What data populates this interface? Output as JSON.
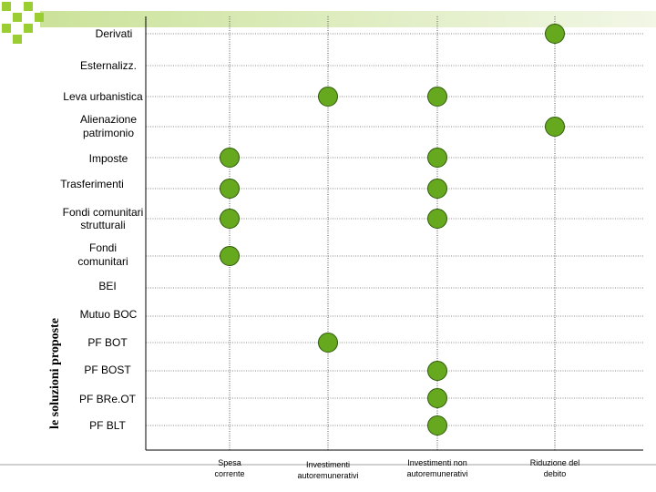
{
  "axis_title": "le soluzioni proposte",
  "colors": {
    "dot_fill": "#66a81e",
    "dot_stroke": "#2f5a0a",
    "header_bar": "#cbe29a",
    "header_squares": "#9acd32"
  },
  "columns": [
    {
      "id": "spesa",
      "lines": [
        "Spesa",
        "corrente"
      ]
    },
    {
      "id": "invest",
      "lines": [
        "Investimenti",
        "autoremunerativi"
      ]
    },
    {
      "id": "nonauto",
      "lines": [
        "Investimenti non",
        "autoremunerativi"
      ]
    },
    {
      "id": "debito",
      "lines": [
        "Riduzione del",
        "debito"
      ]
    }
  ],
  "rows": [
    {
      "id": "derivati",
      "lines": [
        "Derivati"
      ]
    },
    {
      "id": "esternalizz",
      "lines": [
        "Esternalizz."
      ]
    },
    {
      "id": "leva",
      "lines": [
        "Leva urbanistica"
      ]
    },
    {
      "id": "alienazione",
      "lines": [
        "Alienazione",
        "patrimonio"
      ]
    },
    {
      "id": "imposte",
      "lines": [
        "Imposte"
      ]
    },
    {
      "id": "trasferimenti",
      "lines": [
        "Trasferimenti"
      ]
    },
    {
      "id": "fondi-strutturali",
      "lines": [
        "Fondi comunitari",
        "strutturali"
      ]
    },
    {
      "id": "fondi",
      "lines": [
        "Fondi",
        "comunitari"
      ]
    },
    {
      "id": "bei",
      "lines": [
        "BEI"
      ]
    },
    {
      "id": "mutuo-boc",
      "lines": [
        "Mutuo BOC"
      ]
    },
    {
      "id": "pf-bot",
      "lines": [
        "PF BOT"
      ]
    },
    {
      "id": "pf-bost",
      "lines": [
        "PF BOST"
      ]
    },
    {
      "id": "pf-breot",
      "lines": [
        "PF BRe.OT"
      ]
    },
    {
      "id": "pf-blt",
      "lines": [
        "PF BLT"
      ]
    }
  ],
  "marks": [
    {
      "row": "derivati",
      "col": "debito"
    },
    {
      "row": "leva",
      "col": "invest"
    },
    {
      "row": "leva",
      "col": "nonauto"
    },
    {
      "row": "alienazione",
      "col": "debito"
    },
    {
      "row": "imposte",
      "col": "spesa"
    },
    {
      "row": "imposte",
      "col": "nonauto"
    },
    {
      "row": "trasferimenti",
      "col": "spesa"
    },
    {
      "row": "trasferimenti",
      "col": "nonauto"
    },
    {
      "row": "fondi-strutturali",
      "col": "spesa"
    },
    {
      "row": "fondi-strutturali",
      "col": "nonauto"
    },
    {
      "row": "fondi",
      "col": "spesa"
    },
    {
      "row": "pf-bot",
      "col": "invest"
    },
    {
      "row": "pf-bost",
      "col": "nonauto"
    },
    {
      "row": "pf-breot",
      "col": "nonauto"
    },
    {
      "row": "pf-blt",
      "col": "nonauto"
    }
  ]
}
